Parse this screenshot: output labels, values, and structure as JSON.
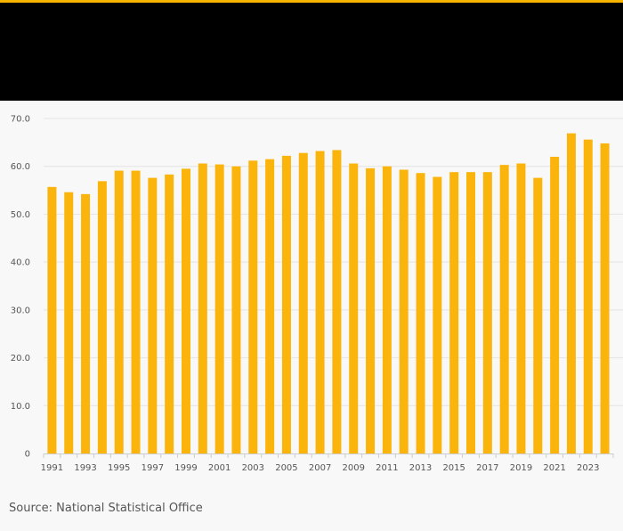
{
  "colors": {
    "accent": "#f7b500",
    "bar": "#fbb40c",
    "header": "#000000",
    "background": "#f8f8f8"
  },
  "source_text": "Source: National Statistical Office",
  "chart_data": {
    "type": "bar",
    "title": "",
    "xlabel": "",
    "ylabel": "",
    "ylim": [
      0,
      70
    ],
    "yticks": [
      0,
      10,
      20,
      30,
      40,
      50,
      60,
      70
    ],
    "ytick_labels": [
      "0",
      "10.0",
      "20.0",
      "30.0",
      "40.0",
      "50.0",
      "60.0",
      "70.0"
    ],
    "grid": true,
    "legend": false,
    "categories": [
      "1991",
      "1992",
      "1993",
      "1994",
      "1995",
      "1996",
      "1997",
      "1998",
      "1999",
      "2000",
      "2001",
      "2002",
      "2003",
      "2004",
      "2005",
      "2006",
      "2007",
      "2008",
      "2009",
      "2010",
      "2011",
      "2012",
      "2013",
      "2014",
      "2015",
      "2016",
      "2017",
      "2018",
      "2019",
      "2020",
      "2021",
      "2022",
      "2023",
      "2024"
    ],
    "xtick_labels": [
      "1991",
      "1993",
      "1995",
      "1997",
      "1999",
      "2001",
      "2003",
      "2005",
      "2007",
      "2009",
      "2011",
      "2013",
      "2015",
      "2017",
      "2019",
      "2021",
      "2023"
    ],
    "values": [
      55.7,
      54.6,
      54.2,
      56.9,
      59.1,
      59.1,
      57.6,
      58.3,
      59.5,
      60.6,
      60.4,
      60.0,
      61.2,
      61.5,
      62.2,
      62.8,
      63.2,
      63.4,
      60.6,
      59.6,
      60.0,
      59.3,
      58.6,
      57.8,
      58.8,
      58.8,
      58.8,
      60.3,
      60.6,
      57.6,
      62.0,
      66.9,
      65.6,
      64.8
    ]
  }
}
